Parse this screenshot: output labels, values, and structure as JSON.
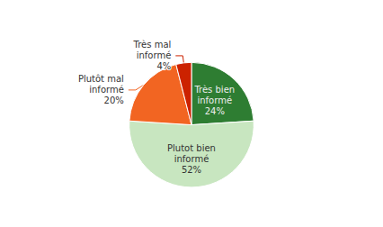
{
  "chart_data": {
    "type": "pie",
    "categories": [
      "Très bien\ninformé",
      "Plutot bien\ninformé",
      "Plutôt mal\ninformé",
      "Très mal\ninformé"
    ],
    "values": [
      24,
      52,
      20,
      4
    ],
    "value_labels": [
      "24%",
      "52%",
      "20%",
      "4%"
    ],
    "colors": [
      "#2e7d32",
      "#c8e6c0",
      "#f26522",
      "#cc2200"
    ],
    "data_labels": true
  }
}
